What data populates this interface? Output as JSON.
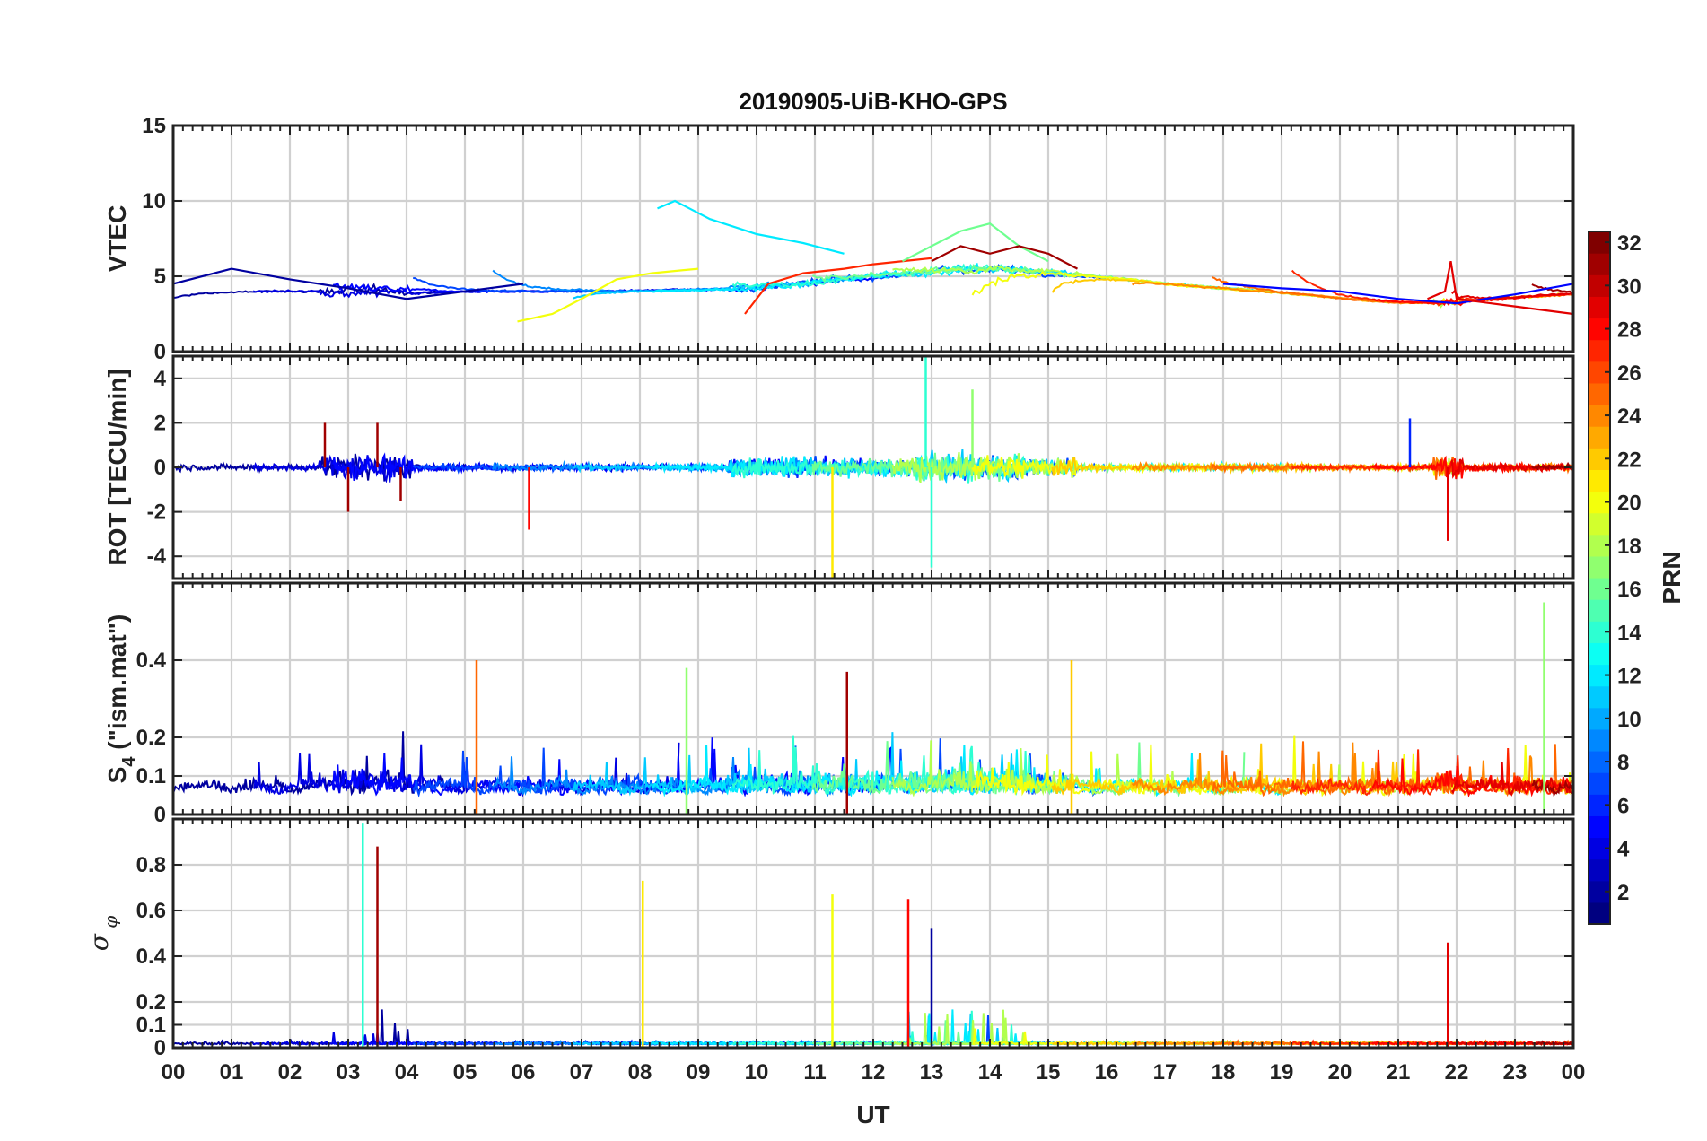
{
  "figure": {
    "title": "20190905-UiB-KHO-GPS",
    "xlabel": "UT",
    "x_ticks": [
      "00",
      "01",
      "02",
      "03",
      "04",
      "05",
      "06",
      "07",
      "08",
      "09",
      "10",
      "11",
      "12",
      "13",
      "14",
      "15",
      "16",
      "17",
      "18",
      "19",
      "20",
      "21",
      "22",
      "23",
      "00"
    ]
  },
  "colorbar": {
    "label": "PRN",
    "colormap": "jet",
    "ticks": [
      "2",
      "4",
      "6",
      "8",
      "10",
      "12",
      "14",
      "16",
      "18",
      "20",
      "22",
      "24",
      "26",
      "28",
      "30",
      "32"
    ],
    "range": [
      1,
      32
    ]
  },
  "chart_data": [
    {
      "type": "line",
      "panel": "VTEC",
      "ylabel": "VTEC",
      "ylim": [
        0,
        15
      ],
      "yticks": [
        "0",
        "5",
        "10",
        "15"
      ],
      "x_unit": "hour UT",
      "grid": true,
      "series": [
        {
          "prn": 2,
          "x": [
            0,
            1,
            2,
            3,
            4,
            5,
            6
          ],
          "y": [
            4.5,
            5.5,
            4.8,
            4.2,
            3.5,
            4.0,
            4.5
          ]
        },
        {
          "prn": 12,
          "x": [
            8.3,
            8.6,
            9.2,
            10,
            10.8,
            11.5
          ],
          "y": [
            9.5,
            10,
            8.8,
            7.8,
            7.2,
            6.5
          ]
        },
        {
          "prn": 20,
          "x": [
            5.9,
            6.5,
            7,
            7.6,
            8.2,
            9
          ],
          "y": [
            2,
            2.5,
            3.5,
            4.8,
            5.2,
            5.5
          ]
        },
        {
          "prn": 27,
          "x": [
            9.8,
            10.2,
            10.8,
            11.5,
            12,
            13
          ],
          "y": [
            2.5,
            4.5,
            5.2,
            5.5,
            5.8,
            6.2
          ]
        },
        {
          "prn": 16,
          "x": [
            12.5,
            13,
            13.5,
            14,
            14.5,
            15
          ],
          "y": [
            6,
            7,
            8,
            8.5,
            7,
            6
          ]
        },
        {
          "prn": 31,
          "x": [
            13,
            13.5,
            14,
            14.5,
            15,
            15.5
          ],
          "y": [
            6,
            7,
            6.5,
            7,
            6.5,
            5.5
          ]
        },
        {
          "prn": 5,
          "x": [
            18,
            19,
            20,
            21,
            22,
            23,
            24
          ],
          "y": [
            4.5,
            4.2,
            4,
            3.5,
            3.2,
            3.8,
            4.5
          ]
        },
        {
          "prn": 29,
          "x": [
            21.5,
            21.8,
            21.9,
            22,
            23,
            24
          ],
          "y": [
            3.5,
            4,
            6,
            3.5,
            3,
            2.5
          ]
        }
      ]
    },
    {
      "type": "line",
      "panel": "ROT",
      "ylabel": "ROT [TECU/min]",
      "ylim": [
        -5,
        5
      ],
      "yticks": [
        "-4",
        "-2",
        "0",
        "2",
        "4"
      ],
      "x_unit": "hour UT",
      "grid": true,
      "series": [
        {
          "prn": 31,
          "x": [
            2.6,
            3,
            3.5,
            3.9
          ],
          "y": [
            2,
            -2,
            2,
            -1.5
          ]
        },
        {
          "prn": 28,
          "x": [
            6.1
          ],
          "y": [
            -2.8
          ]
        },
        {
          "prn": 21,
          "x": [
            11.3
          ],
          "y": [
            -5
          ]
        },
        {
          "prn": 14,
          "x": [
            12.9,
            13
          ],
          "y": [
            5,
            -4.5
          ]
        },
        {
          "prn": 17,
          "x": [
            13.7
          ],
          "y": [
            3.5
          ]
        },
        {
          "prn": 6,
          "x": [
            21.2
          ],
          "y": [
            2.2
          ]
        },
        {
          "prn": 29,
          "x": [
            21.85
          ],
          "y": [
            -3.3
          ]
        }
      ]
    },
    {
      "type": "line",
      "panel": "S4",
      "ylabel": "S4 (\"ism.mat\")",
      "ylabel_main": "S",
      "ylabel_sub": "4",
      "ylabel_rest": " (\"ism.mat\")",
      "ylim": [
        0,
        0.6
      ],
      "yticks": [
        "0",
        "0.1",
        "0.2",
        "0.4"
      ],
      "x_unit": "hour UT",
      "grid": true,
      "series": [
        {
          "prn": 25,
          "x": [
            5.2
          ],
          "y": [
            0.4
          ]
        },
        {
          "prn": 17,
          "x": [
            8.8
          ],
          "y": [
            0.38
          ]
        },
        {
          "prn": 31,
          "x": [
            11.55
          ],
          "y": [
            0.37
          ]
        },
        {
          "prn": 22,
          "x": [
            15.4
          ],
          "y": [
            0.4
          ]
        },
        {
          "prn": 17,
          "x": [
            23.5
          ],
          "y": [
            0.55
          ]
        }
      ]
    },
    {
      "type": "line",
      "panel": "sigma_phi",
      "ylabel": "σ_φ",
      "ylabel_main": "σ",
      "ylabel_sub": "φ",
      "ylim": [
        0,
        1
      ],
      "yticks": [
        "0",
        "0.1",
        "0.2",
        "0.4",
        "0.6",
        "0.8"
      ],
      "x_unit": "hour UT",
      "grid": true,
      "series": [
        {
          "prn": 14,
          "x": [
            3.25
          ],
          "y": [
            0.98
          ]
        },
        {
          "prn": 31,
          "x": [
            3.5
          ],
          "y": [
            0.88
          ]
        },
        {
          "prn": 21,
          "x": [
            8.05
          ],
          "y": [
            0.73
          ]
        },
        {
          "prn": 20,
          "x": [
            11.3
          ],
          "y": [
            0.67
          ]
        },
        {
          "prn": 28,
          "x": [
            12.6
          ],
          "y": [
            0.65
          ]
        },
        {
          "prn": 2,
          "x": [
            13
          ],
          "y": [
            0.52
          ]
        },
        {
          "prn": 29,
          "x": [
            21.85
          ],
          "y": [
            0.46
          ]
        }
      ]
    }
  ]
}
